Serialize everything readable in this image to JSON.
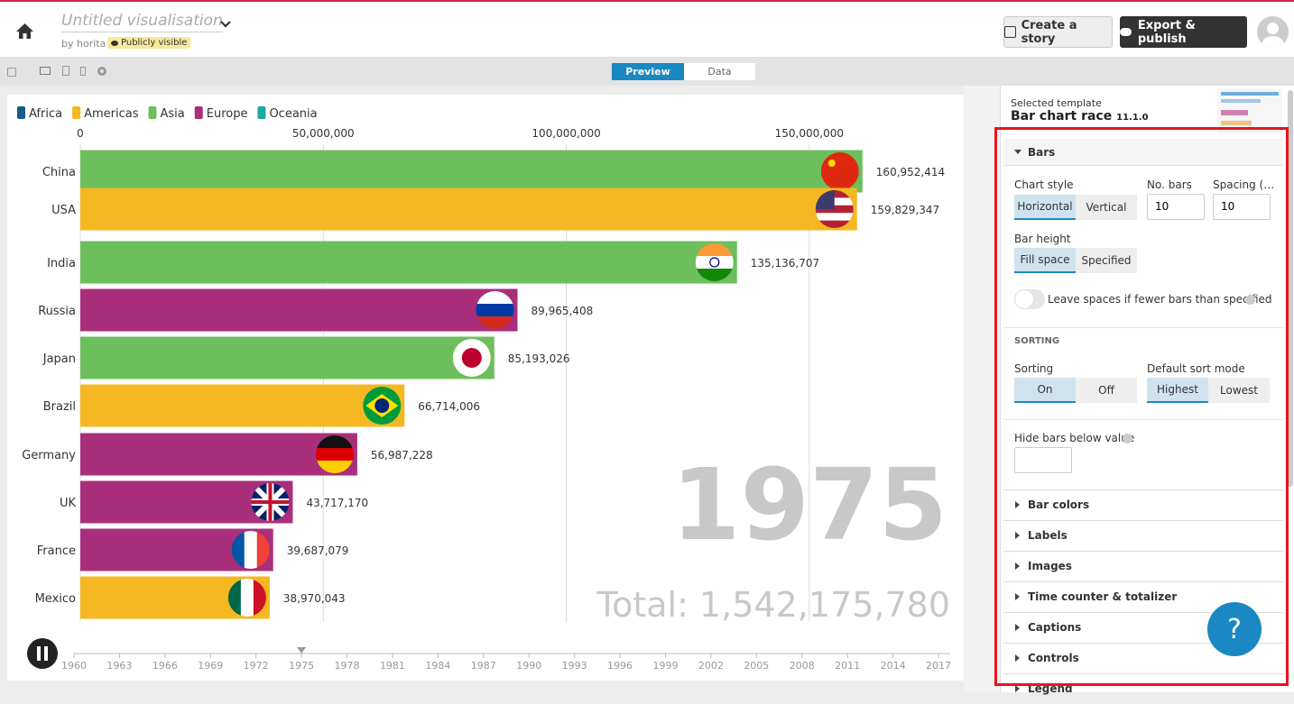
{
  "header": {
    "title": "Untitled visualisation",
    "by": "by horita",
    "visibility": "Publicly visible",
    "create_story": "Create a story",
    "export": "Export & publish"
  },
  "toolbar": {
    "preview": "Preview",
    "data": "Data"
  },
  "chart_data": {
    "type": "bar",
    "legend": [
      {
        "name": "Africa",
        "color": "#165b8c"
      },
      {
        "name": "Americas",
        "color": "#f5b823"
      },
      {
        "name": "Asia",
        "color": "#6cbf5c"
      },
      {
        "name": "Europe",
        "color": "#a92f7c"
      },
      {
        "name": "Oceania",
        "color": "#1aaca3"
      }
    ],
    "categories": [
      "China",
      "USA",
      "India",
      "Russia",
      "Japan",
      "Brazil",
      "Germany",
      "UK",
      "France",
      "Mexico"
    ],
    "groups": [
      "Asia",
      "Americas",
      "Asia",
      "Europe",
      "Asia",
      "Americas",
      "Europe",
      "Europe",
      "Europe",
      "Americas"
    ],
    "values": [
      160952414,
      159829347,
      135136707,
      89965408,
      85193026,
      66714006,
      56987228,
      43717170,
      39687079,
      38970043
    ],
    "value_labels": [
      "160,952,414",
      "159,829,347",
      "135,136,707",
      "89,965,408",
      "85,193,026",
      "66,714,006",
      "56,987,228",
      "43,717,170",
      "39,687,079",
      "38,970,043"
    ],
    "xlim": [
      0,
      179000000
    ],
    "xticks": [
      0,
      {
        "value": 50000000,
        "label": "50,000,000"
      },
      {
        "value": 100000000,
        "label": "100,000,000"
      },
      {
        "value": 150000000,
        "label": "150,000,000"
      }
    ],
    "grid": true,
    "time_label": "1975",
    "total_label": "Total: 1,542,175,780",
    "timeline": {
      "xlim": [
        1960,
        2017
      ],
      "xticks": [
        1960,
        1963,
        1966,
        1969,
        1972,
        1975,
        1978,
        1981,
        1984,
        1987,
        1990,
        1993,
        1996,
        1999,
        2002,
        2005,
        2008,
        2011,
        2014,
        2017
      ],
      "current": 1975
    }
  },
  "panel": {
    "template_caption": "Selected template",
    "template_name": "Bar chart race",
    "template_version": "11.1.0",
    "bars": {
      "title": "Bars",
      "chart_style": "Chart style",
      "horizontal": "Horizontal",
      "vertical": "Vertical",
      "no_bars": "No. bars",
      "no_bars_value": "10",
      "spacing": "Spacing (…",
      "spacing_value": "10",
      "bar_height": "Bar height",
      "fill_space": "Fill space",
      "specified": "Specified",
      "leave_spaces": "Leave spaces if fewer bars than specified",
      "sorting_heading": "SORTING",
      "sorting": "Sorting",
      "on": "On",
      "off": "Off",
      "sort_mode": "Default sort mode",
      "highest": "Highest",
      "lowest": "Lowest",
      "hide_below": "Hide bars below value"
    },
    "sections": [
      "Bar colors",
      "Labels",
      "Images",
      "Time counter & totalizer",
      "Captions",
      "Controls",
      "Legend"
    ]
  },
  "help_button": "?"
}
